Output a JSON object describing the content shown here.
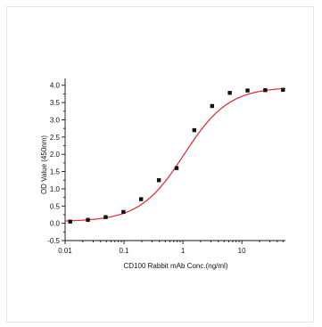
{
  "chart_data": {
    "type": "scatter",
    "title": "",
    "xlabel": "CD100 Rabbit mAb Conc.(ng/ml)",
    "ylabel": "OD Value (450nm)",
    "x_scale": "log",
    "xlim": [
      0.01,
      55
    ],
    "ylim": [
      -0.5,
      4.2
    ],
    "x_ticks": [
      0.01,
      0.1,
      1,
      10
    ],
    "x_tick_labels": [
      "0.01",
      "0.1",
      "1",
      "10"
    ],
    "y_ticks": [
      -0.5,
      0.0,
      0.5,
      1.0,
      1.5,
      2.0,
      2.5,
      3.0,
      3.5,
      4.0
    ],
    "y_tick_labels": [
      "-0.5",
      "0.0",
      "0.5",
      "1.0",
      "1.5",
      "2.0",
      "2.5",
      "3.0",
      "3.5",
      "4.0"
    ],
    "grid": false,
    "series": [
      {
        "type": "scatter",
        "color": "#111111",
        "marker": "square",
        "x": [
          0.0122,
          0.0244,
          0.0488,
          0.0977,
          0.195,
          0.391,
          0.781,
          1.56,
          3.13,
          6.25,
          12.5,
          25,
          50
        ],
        "y": [
          0.05,
          0.1,
          0.18,
          0.33,
          0.7,
          1.25,
          1.6,
          2.7,
          3.4,
          3.78,
          3.85,
          3.86,
          3.87
        ]
      },
      {
        "type": "line",
        "color": "#e8232a",
        "fit": "4PL",
        "bottom": 0.05,
        "top": 3.95,
        "ec50": 1.05,
        "hill": 1.15
      }
    ]
  }
}
